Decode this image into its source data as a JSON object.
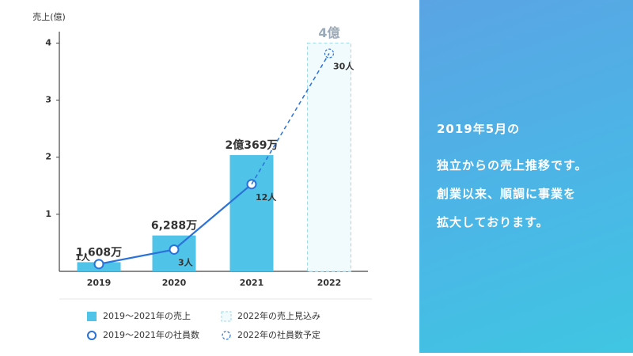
{
  "chart_data": {
    "type": "bar-line",
    "y_label": "売上(億)",
    "categories": [
      "2019",
      "2020",
      "2021",
      "2022"
    ],
    "ylim": [
      0,
      4.2
    ],
    "yticks": [
      1,
      2,
      3,
      4
    ],
    "y2lim": [
      0,
      33
    ],
    "series": [
      {
        "name": "2019〜2021年の売上",
        "type": "bar",
        "color": "#4fc3e8",
        "values": [
          0.1608,
          0.6288,
          2.0369,
          null
        ],
        "value_labels": [
          "1,608万",
          "6,288万",
          "2億369万",
          null
        ]
      },
      {
        "name": "2022年の売上見込み",
        "type": "bar",
        "dashed": true,
        "color": "#9fd9ee",
        "values": [
          null,
          null,
          null,
          4
        ],
        "value_labels": [
          null,
          null,
          null,
          "4億"
        ]
      },
      {
        "name": "2019〜2021年の社員数",
        "type": "line",
        "axis": "y2",
        "color": "#2a72d8",
        "values": [
          1,
          3,
          12,
          null
        ],
        "value_labels": [
          "1人",
          "3人",
          "12人",
          null
        ]
      },
      {
        "name": "2022年の社員数予定",
        "type": "line",
        "axis": "y2",
        "dashed": true,
        "color": "#2a72d8",
        "values": [
          null,
          null,
          null,
          30
        ],
        "value_labels": [
          null,
          null,
          null,
          "30人"
        ]
      }
    ]
  },
  "side_text": [
    "2019年5月の",
    "独立からの売上推移です。",
    "創業以来、順調に事業を",
    "拡大しております。"
  ]
}
